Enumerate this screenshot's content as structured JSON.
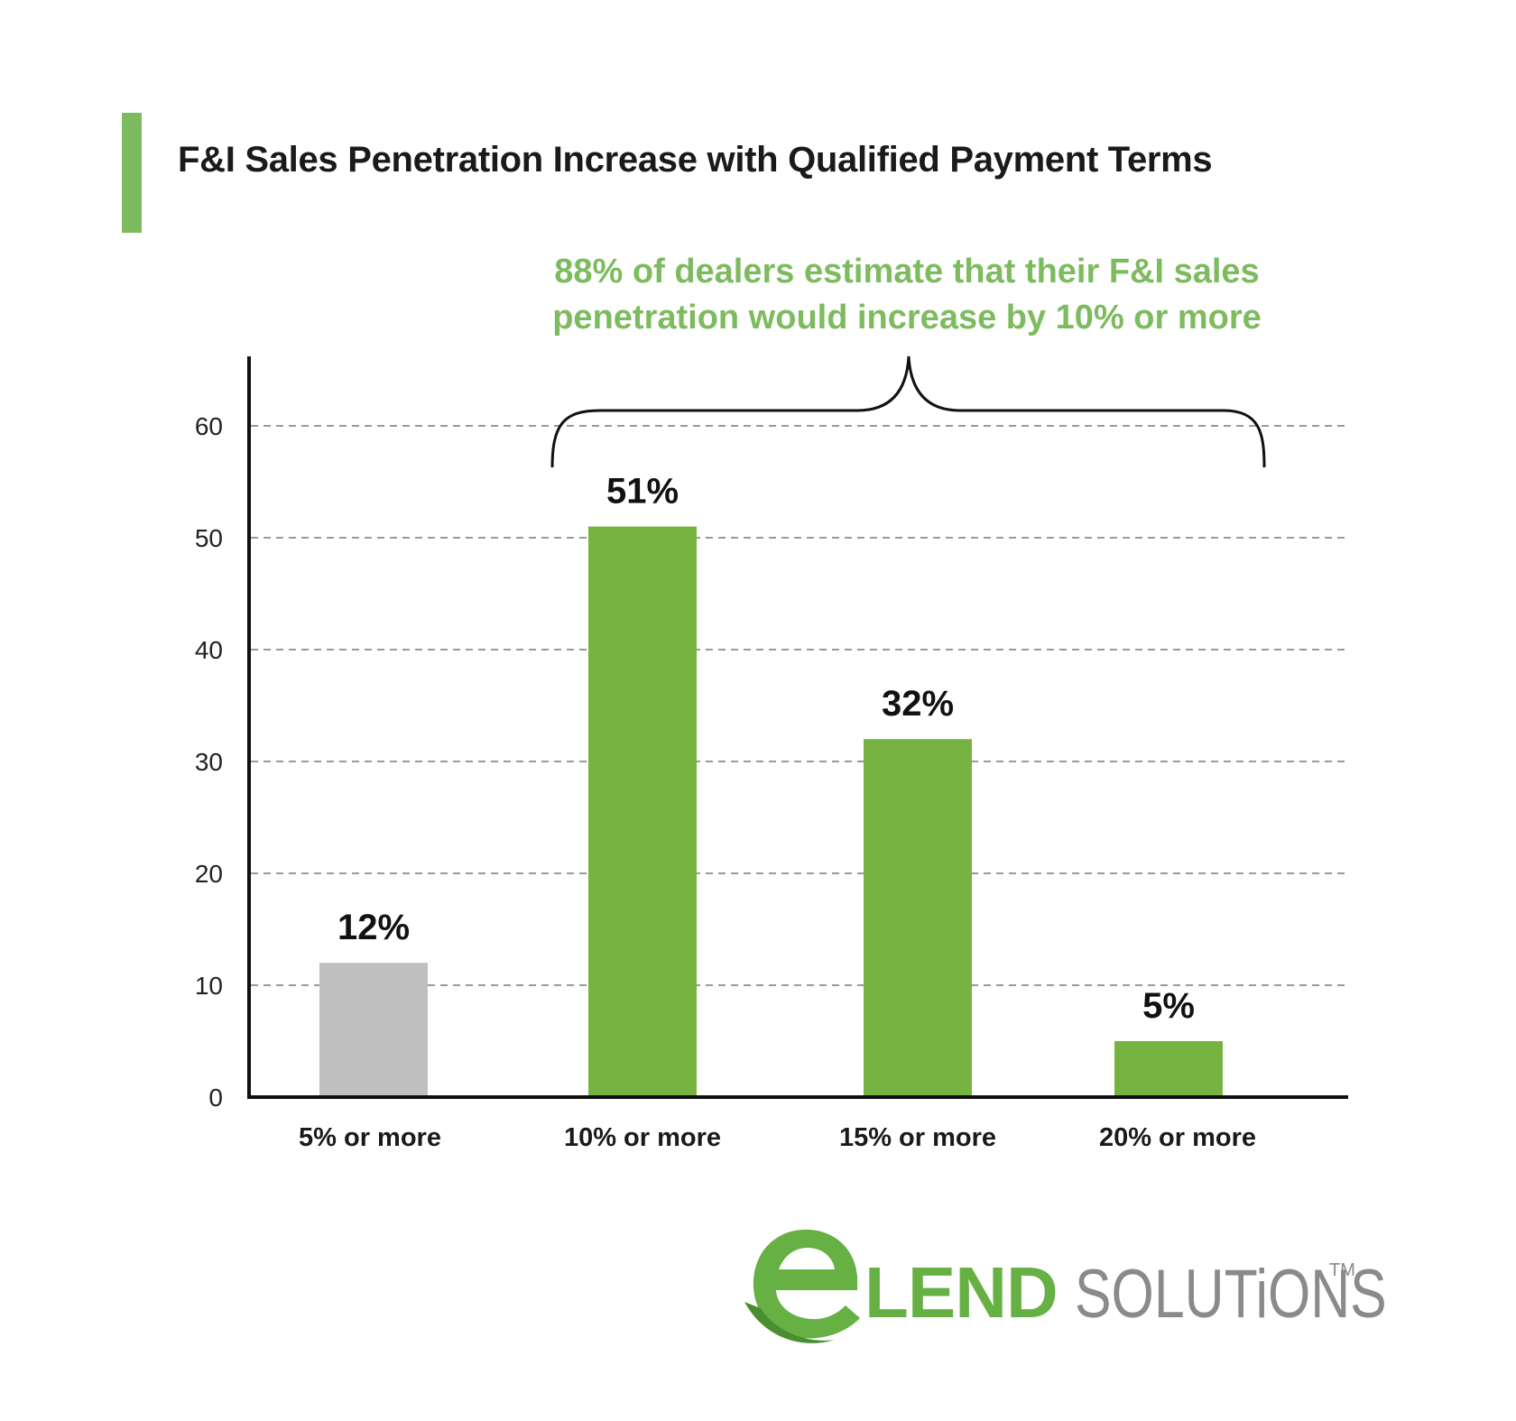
{
  "chart_data": {
    "type": "bar",
    "title": "F&I Sales Penetration Increase with Qualified Payment Terms",
    "annotation_lines": [
      "88% of dealers estimate that their F&I sales",
      "penetration would increase by 10% or more"
    ],
    "categories": [
      "5% or more",
      "10% or more",
      "15% or more",
      "20% or more"
    ],
    "values": [
      12,
      51,
      32,
      5
    ],
    "value_labels": [
      "12%",
      "51%",
      "32%",
      "5%"
    ],
    "bar_colors": [
      "#bfbfbf",
      "#76b341",
      "#76b341",
      "#76b341"
    ],
    "ylim": [
      0,
      66
    ],
    "yticks": [
      0,
      10,
      20,
      30,
      40,
      50,
      60
    ],
    "grid": "dashed horizontal",
    "brace_spans": [
      "10% or more",
      "20% or more"
    ]
  },
  "colors": {
    "accent_green": "#7dbb5f",
    "bar_green": "#76b341",
    "bar_gray": "#bfbfbf",
    "grid": "#9a9a9a",
    "axis": "#111111",
    "text": "#1a1a1a"
  },
  "logo": {
    "brand_lend": "LEND",
    "brand_solutions": "SOLUTiONS",
    "trademark": "TM",
    "icon": "elend-e-swoosh-icon"
  }
}
